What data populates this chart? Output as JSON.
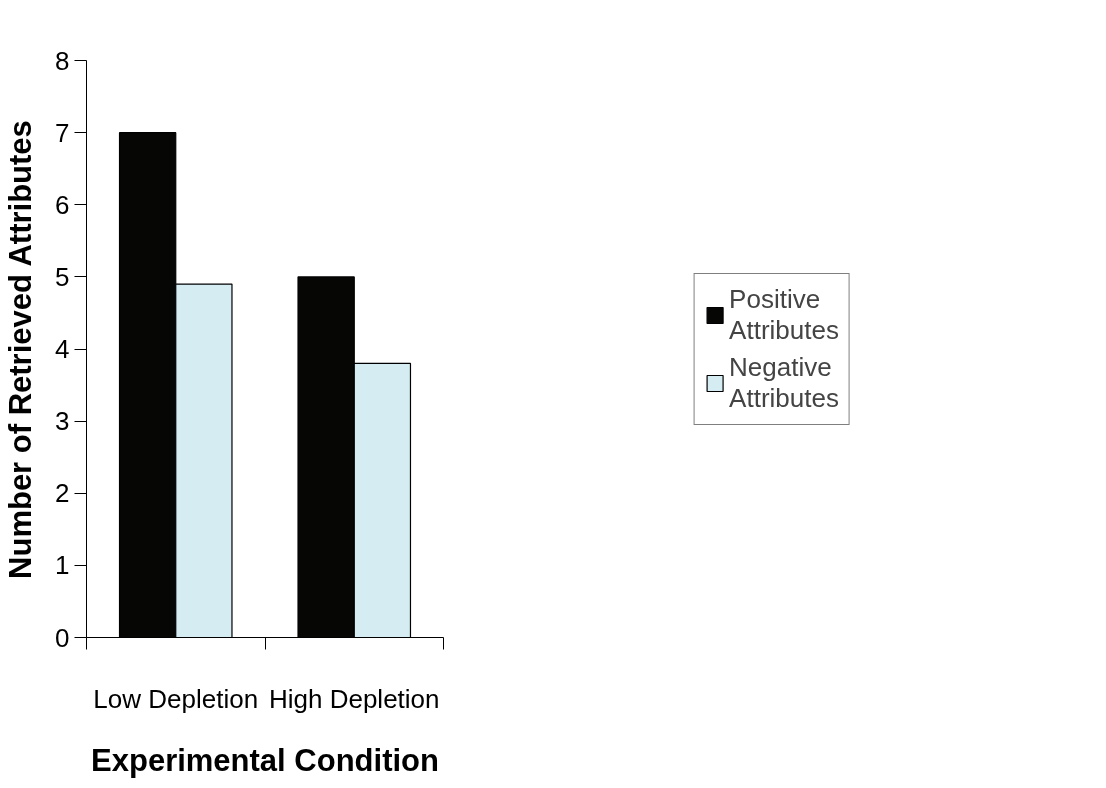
{
  "chart_data": {
    "type": "bar",
    "xlabel": "Experimental Condition",
    "ylabel": "Number of Retrieved Attributes",
    "categories": [
      "Low Depletion",
      "High Depletion"
    ],
    "series": [
      {
        "name": "Positive Attributes",
        "color": "#060604",
        "values": [
          7.0,
          5.0
        ]
      },
      {
        "name": "Negative Attributes",
        "color": "#d4ecf2",
        "values": [
          4.9,
          3.8
        ]
      }
    ],
    "ylim": [
      0,
      8
    ],
    "yticks": [
      0,
      1,
      2,
      3,
      4,
      5,
      6,
      7,
      8
    ],
    "grid": false,
    "legend": "right"
  }
}
